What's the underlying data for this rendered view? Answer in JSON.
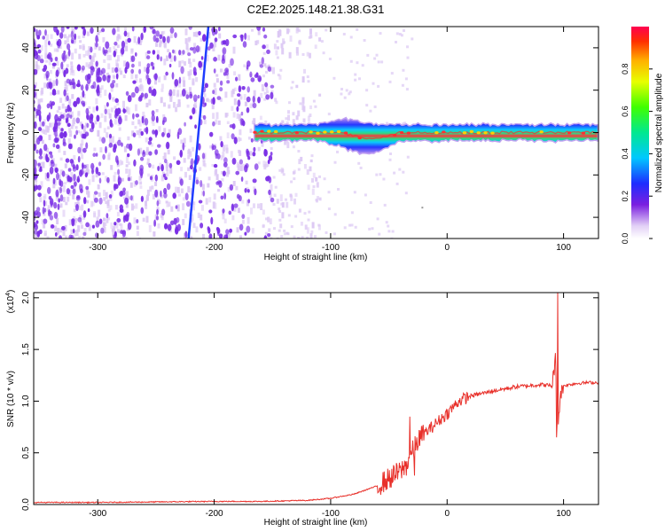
{
  "title": "C2E2.2025.148.21.38.G31",
  "colors": {
    "snr_line": "#e8302a",
    "spec_faint": "#dcc8f4",
    "spec_dots": "#7a2ee6",
    "spec_streak": "#1f3cff"
  },
  "chart_data": [
    {
      "type": "heatmap",
      "title": "C2E2.2025.148.21.38.G31",
      "xlabel": "Height of straight line (km)",
      "ylabel": "Frequency (Hz)",
      "xlim": [
        -355,
        130
      ],
      "ylim": [
        -50,
        50
      ],
      "xticks": [
        -300,
        -200,
        -100,
        0,
        100
      ],
      "xtick_labels": [
        "-300",
        "-200",
        "-100",
        "0",
        "100"
      ],
      "yticks": [
        -40,
        -20,
        0,
        20,
        40
      ],
      "ytick_labels": [
        "-40",
        "-20",
        "0",
        "20",
        "40"
      ],
      "colorbar": {
        "label": "Normalized spectral amplitude",
        "range": [
          0,
          1
        ],
        "ticks": [
          0.0,
          0.2,
          0.4,
          0.6,
          0.8
        ],
        "tick_labels": [
          "0.0",
          "0.2",
          "0.4",
          "0.6",
          "0.8"
        ],
        "colormap": "rainbow (white-violet-blue-cyan-green-yellow-red)"
      },
      "features": {
        "noise_region_x": [
          -355,
          -110
        ],
        "streak_line": {
          "x_at_min_freq": -222,
          "x_at_max_freq": -205
        },
        "signal_band": {
          "x_start": -165,
          "x_end": 130,
          "center_freq": 0,
          "half_width_max": 7
        }
      }
    },
    {
      "type": "line",
      "xlabel": "Height of straight line (km)",
      "ylabel": "SNR (10 * v/v)",
      "y_multiplier_label": "(x10",
      "y_multiplier_exp": "4",
      "xlim": [
        -355,
        130
      ],
      "ylim": [
        0,
        2.05
      ],
      "xticks": [
        -300,
        -200,
        -100,
        0,
        100
      ],
      "xtick_labels": [
        "-300",
        "-200",
        "-100",
        "0",
        "100"
      ],
      "yticks": [
        0.0,
        0.5,
        1.0,
        1.5,
        2.0
      ],
      "ytick_labels": [
        "0.0",
        "0.5",
        "1.0",
        "1.5",
        "2.0"
      ],
      "series": [
        {
          "x": [
            -355,
            -300,
            -250,
            -200,
            -160,
            -120,
            -100,
            -80,
            -60,
            -50,
            -40,
            -35,
            -30,
            -25,
            -20,
            -10,
            0,
            10,
            20,
            40,
            60,
            80,
            90,
            93,
            95,
            97,
            100,
            110,
            120,
            130
          ],
          "y": [
            0.02,
            0.02,
            0.025,
            0.03,
            0.03,
            0.04,
            0.06,
            0.1,
            0.18,
            0.25,
            0.32,
            0.38,
            0.5,
            0.62,
            0.68,
            0.78,
            0.88,
            1.0,
            1.05,
            1.1,
            1.14,
            1.16,
            1.15,
            1.4,
            0.7,
            1.05,
            1.15,
            1.17,
            1.18,
            1.18
          ],
          "spikes": [
            {
              "x": -32,
              "y": 0.85
            },
            {
              "x": -28,
              "y": 0.28
            },
            {
              "x": 95,
              "y": 2.05
            },
            {
              "x": 94,
              "y": 0.65
            }
          ]
        }
      ]
    }
  ]
}
